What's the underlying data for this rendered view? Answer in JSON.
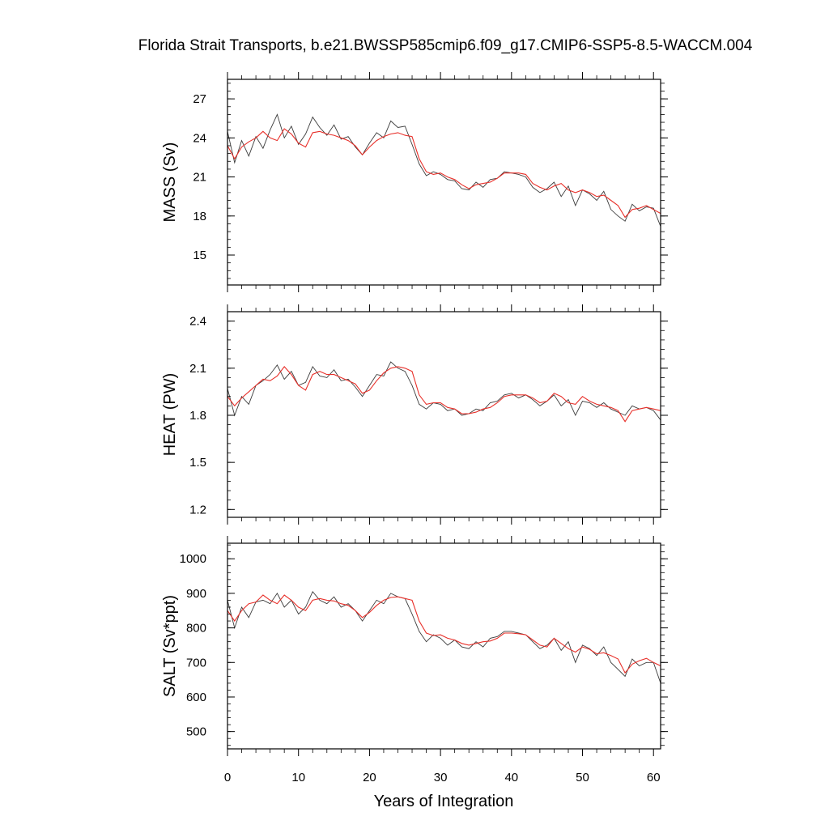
{
  "title": "Florida Strait Transports, b.e21.BWSSP585cmip6.f09_g17.CMIP6-SSP5-8.5-WACCM.004",
  "xlabel": "Years of Integration",
  "chart_data": [
    {
      "type": "line",
      "ylabel": "MASS (Sv)",
      "xlim": [
        0,
        61
      ],
      "ylim": [
        12.7,
        28.5
      ],
      "yticks": [
        15,
        18,
        21,
        24,
        27
      ],
      "xticks": [
        0,
        10,
        20,
        30,
        40,
        50,
        60
      ],
      "grid": false,
      "colors": {
        "raw": "#3c3c3c",
        "smooth": "#e8302a"
      },
      "series": [
        {
          "style": "raw",
          "x": [
            0,
            1,
            2,
            3,
            4,
            5,
            6,
            7,
            8,
            9,
            10,
            11,
            12,
            13,
            14,
            15,
            16,
            17,
            18,
            19,
            20,
            21,
            22,
            23,
            24,
            25,
            26,
            27,
            28,
            29,
            30,
            31,
            32,
            33,
            34,
            35,
            36,
            37,
            38,
            39,
            40,
            41,
            42,
            43,
            44,
            45,
            46,
            47,
            48,
            49,
            50,
            51,
            52,
            53,
            54,
            55,
            56,
            57,
            58,
            59,
            60,
            61
          ],
          "values": [
            24.5,
            22.1,
            23.8,
            22.6,
            24.1,
            23.2,
            24.6,
            25.8,
            24.0,
            24.9,
            23.5,
            24.3,
            25.6,
            24.8,
            24.2,
            25.0,
            23.9,
            24.1,
            23.3,
            22.7,
            23.6,
            24.4,
            24.0,
            25.3,
            24.8,
            24.9,
            23.5,
            22.0,
            21.1,
            21.4,
            21.2,
            20.8,
            20.7,
            20.1,
            20.0,
            20.6,
            20.2,
            20.8,
            20.9,
            21.4,
            21.3,
            21.2,
            21.0,
            20.2,
            19.8,
            20.1,
            20.6,
            19.5,
            20.3,
            18.8,
            20.0,
            19.7,
            19.2,
            19.9,
            18.5,
            18.0,
            17.6,
            18.9,
            18.4,
            18.7,
            18.6,
            17.2
          ]
        },
        {
          "style": "smooth",
          "x": [
            0,
            1,
            2,
            3,
            4,
            5,
            6,
            7,
            8,
            9,
            10,
            11,
            12,
            13,
            14,
            15,
            16,
            17,
            18,
            19,
            20,
            21,
            22,
            23,
            24,
            25,
            26,
            27,
            28,
            29,
            30,
            31,
            32,
            33,
            34,
            35,
            36,
            37,
            38,
            39,
            40,
            41,
            42,
            43,
            44,
            45,
            46,
            47,
            48,
            49,
            50,
            51,
            52,
            53,
            54,
            55,
            56,
            57,
            58,
            59,
            60,
            61
          ],
          "values": [
            23.4,
            22.4,
            23.3,
            23.7,
            24.0,
            24.5,
            24.0,
            23.8,
            24.7,
            24.3,
            23.6,
            23.3,
            24.4,
            24.5,
            24.3,
            24.2,
            24.0,
            23.8,
            23.4,
            22.7,
            23.3,
            23.8,
            24.1,
            24.3,
            24.4,
            24.2,
            24.1,
            22.4,
            21.4,
            21.2,
            21.3,
            21.0,
            20.8,
            20.4,
            20.1,
            20.4,
            20.5,
            20.6,
            20.9,
            21.3,
            21.3,
            21.3,
            21.2,
            20.5,
            20.2,
            20.0,
            20.3,
            20.5,
            20.0,
            19.8,
            20.0,
            19.8,
            19.5,
            19.6,
            19.2,
            18.8,
            17.9,
            18.5,
            18.6,
            18.8,
            18.5,
            18.2
          ]
        }
      ]
    },
    {
      "type": "line",
      "ylabel": "HEAT (PW)",
      "xlim": [
        0,
        61
      ],
      "ylim": [
        1.15,
        2.46
      ],
      "yticks": [
        1.2,
        1.5,
        1.8,
        2.1,
        2.4
      ],
      "xticks": [
        0,
        10,
        20,
        30,
        40,
        50,
        60
      ],
      "grid": false,
      "colors": {
        "raw": "#3c3c3c",
        "smooth": "#e8302a"
      },
      "series": [
        {
          "style": "raw",
          "x": [
            0,
            1,
            2,
            3,
            4,
            5,
            6,
            7,
            8,
            9,
            10,
            11,
            12,
            13,
            14,
            15,
            16,
            17,
            18,
            19,
            20,
            21,
            22,
            23,
            24,
            25,
            26,
            27,
            28,
            29,
            30,
            31,
            32,
            33,
            34,
            35,
            36,
            37,
            38,
            39,
            40,
            41,
            42,
            43,
            44,
            45,
            46,
            47,
            48,
            49,
            50,
            51,
            52,
            53,
            54,
            55,
            56,
            57,
            58,
            59,
            60,
            61
          ],
          "values": [
            1.97,
            1.8,
            1.92,
            1.87,
            1.99,
            2.02,
            2.06,
            2.12,
            2.03,
            2.08,
            1.99,
            2.01,
            2.11,
            2.05,
            2.04,
            2.09,
            2.02,
            2.03,
            1.98,
            1.92,
            1.99,
            2.06,
            2.05,
            2.14,
            2.1,
            2.08,
            1.99,
            1.87,
            1.84,
            1.88,
            1.87,
            1.83,
            1.84,
            1.8,
            1.81,
            1.84,
            1.83,
            1.88,
            1.89,
            1.93,
            1.94,
            1.91,
            1.93,
            1.9,
            1.86,
            1.89,
            1.93,
            1.86,
            1.9,
            1.8,
            1.89,
            1.88,
            1.85,
            1.88,
            1.84,
            1.82,
            1.8,
            1.86,
            1.84,
            1.85,
            1.83,
            1.77
          ]
        },
        {
          "style": "smooth",
          "x": [
            0,
            1,
            2,
            3,
            4,
            5,
            6,
            7,
            8,
            9,
            10,
            11,
            12,
            13,
            14,
            15,
            16,
            17,
            18,
            19,
            20,
            21,
            22,
            23,
            24,
            25,
            26,
            27,
            28,
            29,
            30,
            31,
            32,
            33,
            34,
            35,
            36,
            37,
            38,
            39,
            40,
            41,
            42,
            43,
            44,
            45,
            46,
            47,
            48,
            49,
            50,
            51,
            52,
            53,
            54,
            55,
            56,
            57,
            58,
            59,
            60,
            61
          ],
          "values": [
            1.92,
            1.86,
            1.91,
            1.95,
            1.99,
            2.03,
            2.02,
            2.05,
            2.11,
            2.06,
            1.99,
            1.96,
            2.06,
            2.08,
            2.06,
            2.06,
            2.04,
            2.02,
            2.0,
            1.94,
            1.96,
            2.02,
            2.07,
            2.1,
            2.11,
            2.1,
            2.08,
            1.93,
            1.87,
            1.88,
            1.88,
            1.85,
            1.84,
            1.81,
            1.81,
            1.82,
            1.84,
            1.85,
            1.88,
            1.92,
            1.93,
            1.93,
            1.93,
            1.91,
            1.88,
            1.89,
            1.94,
            1.92,
            1.88,
            1.87,
            1.92,
            1.89,
            1.87,
            1.86,
            1.85,
            1.83,
            1.76,
            1.83,
            1.84,
            1.85,
            1.84,
            1.83
          ]
        }
      ]
    },
    {
      "type": "line",
      "ylabel": "SALT (Sv*ppt)",
      "xlim": [
        0,
        61
      ],
      "ylim": [
        450,
        1045
      ],
      "yticks": [
        500,
        600,
        700,
        800,
        900,
        1000
      ],
      "xticks": [
        0,
        10,
        20,
        30,
        40,
        50,
        60
      ],
      "grid": false,
      "colors": {
        "raw": "#3c3c3c",
        "smooth": "#e8302a"
      },
      "series": [
        {
          "style": "raw",
          "x": [
            0,
            1,
            2,
            3,
            4,
            5,
            6,
            7,
            8,
            9,
            10,
            11,
            12,
            13,
            14,
            15,
            16,
            17,
            18,
            19,
            20,
            21,
            22,
            23,
            24,
            25,
            26,
            27,
            28,
            29,
            30,
            31,
            32,
            33,
            34,
            35,
            36,
            37,
            38,
            39,
            40,
            41,
            42,
            43,
            44,
            45,
            46,
            47,
            48,
            49,
            50,
            51,
            52,
            53,
            54,
            55,
            56,
            57,
            58,
            59,
            60,
            61
          ],
          "values": [
            880,
            800,
            860,
            830,
            875,
            880,
            870,
            900,
            860,
            880,
            840,
            860,
            905,
            880,
            870,
            890,
            860,
            870,
            850,
            820,
            850,
            880,
            870,
            900,
            890,
            885,
            840,
            790,
            760,
            780,
            770,
            750,
            765,
            745,
            740,
            760,
            745,
            770,
            775,
            790,
            790,
            785,
            780,
            760,
            740,
            750,
            770,
            735,
            760,
            700,
            750,
            740,
            720,
            745,
            700,
            680,
            660,
            710,
            690,
            700,
            700,
            640
          ]
        },
        {
          "style": "smooth",
          "x": [
            0,
            1,
            2,
            3,
            4,
            5,
            6,
            7,
            8,
            9,
            10,
            11,
            12,
            13,
            14,
            15,
            16,
            17,
            18,
            19,
            20,
            21,
            22,
            23,
            24,
            25,
            26,
            27,
            28,
            29,
            30,
            31,
            32,
            33,
            34,
            35,
            36,
            37,
            38,
            39,
            40,
            41,
            42,
            43,
            44,
            45,
            46,
            47,
            48,
            49,
            50,
            51,
            52,
            53,
            54,
            55,
            56,
            57,
            58,
            59,
            60,
            61
          ],
          "values": [
            850,
            820,
            850,
            870,
            875,
            895,
            880,
            870,
            895,
            880,
            860,
            850,
            880,
            885,
            880,
            878,
            870,
            865,
            850,
            830,
            845,
            865,
            880,
            888,
            890,
            885,
            880,
            820,
            785,
            778,
            780,
            770,
            765,
            755,
            750,
            755,
            760,
            762,
            770,
            785,
            785,
            783,
            780,
            765,
            750,
            745,
            770,
            755,
            740,
            730,
            745,
            738,
            725,
            728,
            720,
            710,
            670,
            695,
            705,
            712,
            700,
            690
          ]
        }
      ]
    }
  ]
}
